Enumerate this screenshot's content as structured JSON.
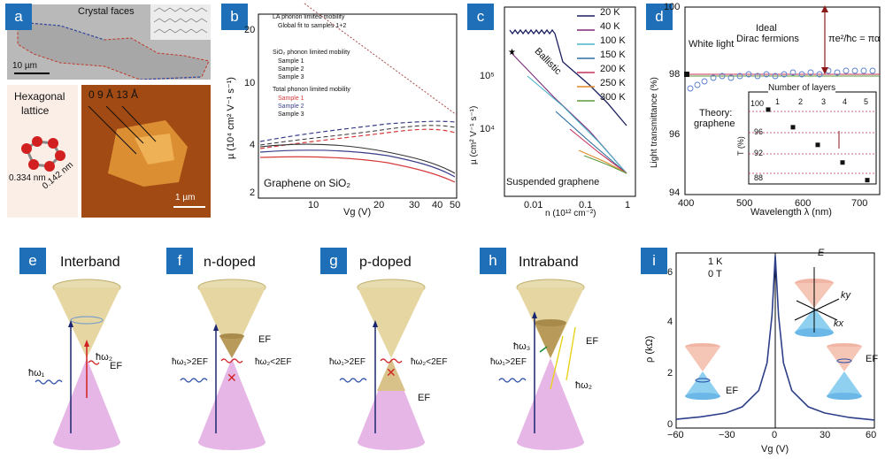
{
  "panels": {
    "a": {
      "label": "a",
      "crystal_faces": "Crystal faces",
      "scale_top": "10 µm",
      "hex_title_1": "Hexagonal",
      "hex_title_2": "lattice",
      "d1": "0.334 nm",
      "d2": "0.142 nm",
      "afm_heights": "0  9 Å  13 Å",
      "scale_afm": "1 µm"
    },
    "b": {
      "label": "b",
      "ylabel": "µ (10⁴ cm² V⁻¹ s⁻¹)",
      "xlabel": "Vg (V)",
      "yticks": [
        "20",
        "10",
        "4",
        "2"
      ],
      "xticks": [
        "10",
        "20",
        "30",
        "40",
        "50"
      ],
      "legend": {
        "la_title": "LA phonon limited mobility",
        "la_item": "Global fit to samples 1+2",
        "sio2_title": "SiO₂ phonon limited mobility",
        "sio2_items": [
          "Sample 1",
          "Sample 2",
          "Sample 3"
        ],
        "total_title": "Total phonon limited mobility",
        "total_items": [
          "Sample 1",
          "Sample 2",
          "Sample 3"
        ]
      },
      "caption": "Graphene on SiO₂",
      "colors": [
        "#d63b3b",
        "#3a3f8a",
        "#333333"
      ]
    },
    "c": {
      "label": "c",
      "ylabel": "µ (cm² V⁻¹ s⁻¹)",
      "xlabel": "n (10¹² cm⁻²)",
      "yticks": [
        "10⁵",
        "10⁴"
      ],
      "xticks": [
        "0.01",
        "0.1",
        "1"
      ],
      "ballistic": "Ballistic",
      "caption": "Suspended graphene",
      "legend": [
        {
          "name": "20 K",
          "color": "#1a1f5e"
        },
        {
          "name": "40 K",
          "color": "#7b2a7b"
        },
        {
          "name": "100 K",
          "color": "#4ab3c8"
        },
        {
          "name": "150 K",
          "color": "#2e6fa0"
        },
        {
          "name": "200 K",
          "color": "#c8325a"
        },
        {
          "name": "250 K",
          "color": "#e08a2a"
        },
        {
          "name": "300 K",
          "color": "#5a9a3a"
        }
      ]
    },
    "d": {
      "label": "d",
      "ylabel": "Light transmittance (%)",
      "xlabel": "Wavelength λ (nm)",
      "yticks": [
        "100",
        "98",
        "96",
        "94"
      ],
      "xticks": [
        "400",
        "500",
        "600",
        "700"
      ],
      "white_light": "White light",
      "ideal_1": "Ideal",
      "ideal_2": "Dirac fermions",
      "formula": "πe²/ħc = πα",
      "theory_1": "Theory:",
      "theory_2": "graphene",
      "inset_title": "Number of layers",
      "inset_xticks": [
        "1",
        "2",
        "3",
        "4",
        "5"
      ],
      "inset_yticks": [
        "100",
        "96",
        "92",
        "88"
      ],
      "inset_ylabel": "T (%)",
      "inset_values": [
        97.7,
        95.4,
        93.1,
        90.8,
        88.5
      ]
    },
    "e": {
      "label": "e",
      "title": "Interband",
      "w1": "ħω₁",
      "w2": "ħω₂",
      "ef": "EF"
    },
    "f": {
      "label": "f",
      "title": "n-doped",
      "ef": "EF",
      "w1": "ħω₁>2EF",
      "w2": "ħω₂<2EF"
    },
    "g": {
      "label": "g",
      "title": "p-doped",
      "ef": "EF",
      "w1": "ħω₁>2EF",
      "w2": "ħω₂<2EF"
    },
    "h": {
      "label": "h",
      "title": "Intraband",
      "ef": "EF",
      "w1": "ħω₁>2EF",
      "w2": "ħω₂",
      "w3": "ħω₃"
    },
    "i": {
      "label": "i",
      "ylabel": "ρ (kΩ)",
      "xlabel": "Vg (V)",
      "yticks": [
        "6",
        "4",
        "2",
        "0"
      ],
      "xticks": [
        "−60",
        "−30",
        "0",
        "30",
        "60"
      ],
      "cond_1": "1 K",
      "cond_2": "0 T",
      "axis_e": "E",
      "axis_ky": "ky",
      "axis_kx": "kx",
      "ef_left": "EF",
      "ef_right": "EF"
    }
  },
  "chart_data": [
    {
      "type": "line",
      "panel": "i",
      "x": [
        -60,
        -45,
        -30,
        -20,
        -10,
        -5,
        -2,
        0,
        2,
        5,
        10,
        20,
        30,
        45,
        60
      ],
      "series": [
        {
          "values": [
            0.35,
            0.45,
            0.6,
            0.85,
            1.5,
            2.6,
            4.5,
            6.9,
            4.5,
            2.6,
            1.5,
            0.85,
            0.6,
            0.42,
            0.32
          ]
        }
      ],
      "xlabel": "Vg (V)",
      "ylabel": "ρ (kΩ)",
      "xlim": [
        -60,
        60
      ],
      "ylim": [
        0,
        7
      ]
    },
    {
      "type": "scatter",
      "panel": "d-inset",
      "x": [
        1,
        2,
        3,
        4,
        5
      ],
      "series": [
        {
          "values": [
            97.7,
            95.4,
            93.1,
            90.8,
            88.5
          ]
        }
      ],
      "xlabel": "Number of layers",
      "ylabel": "T (%)",
      "ylim": [
        88,
        100
      ]
    }
  ]
}
